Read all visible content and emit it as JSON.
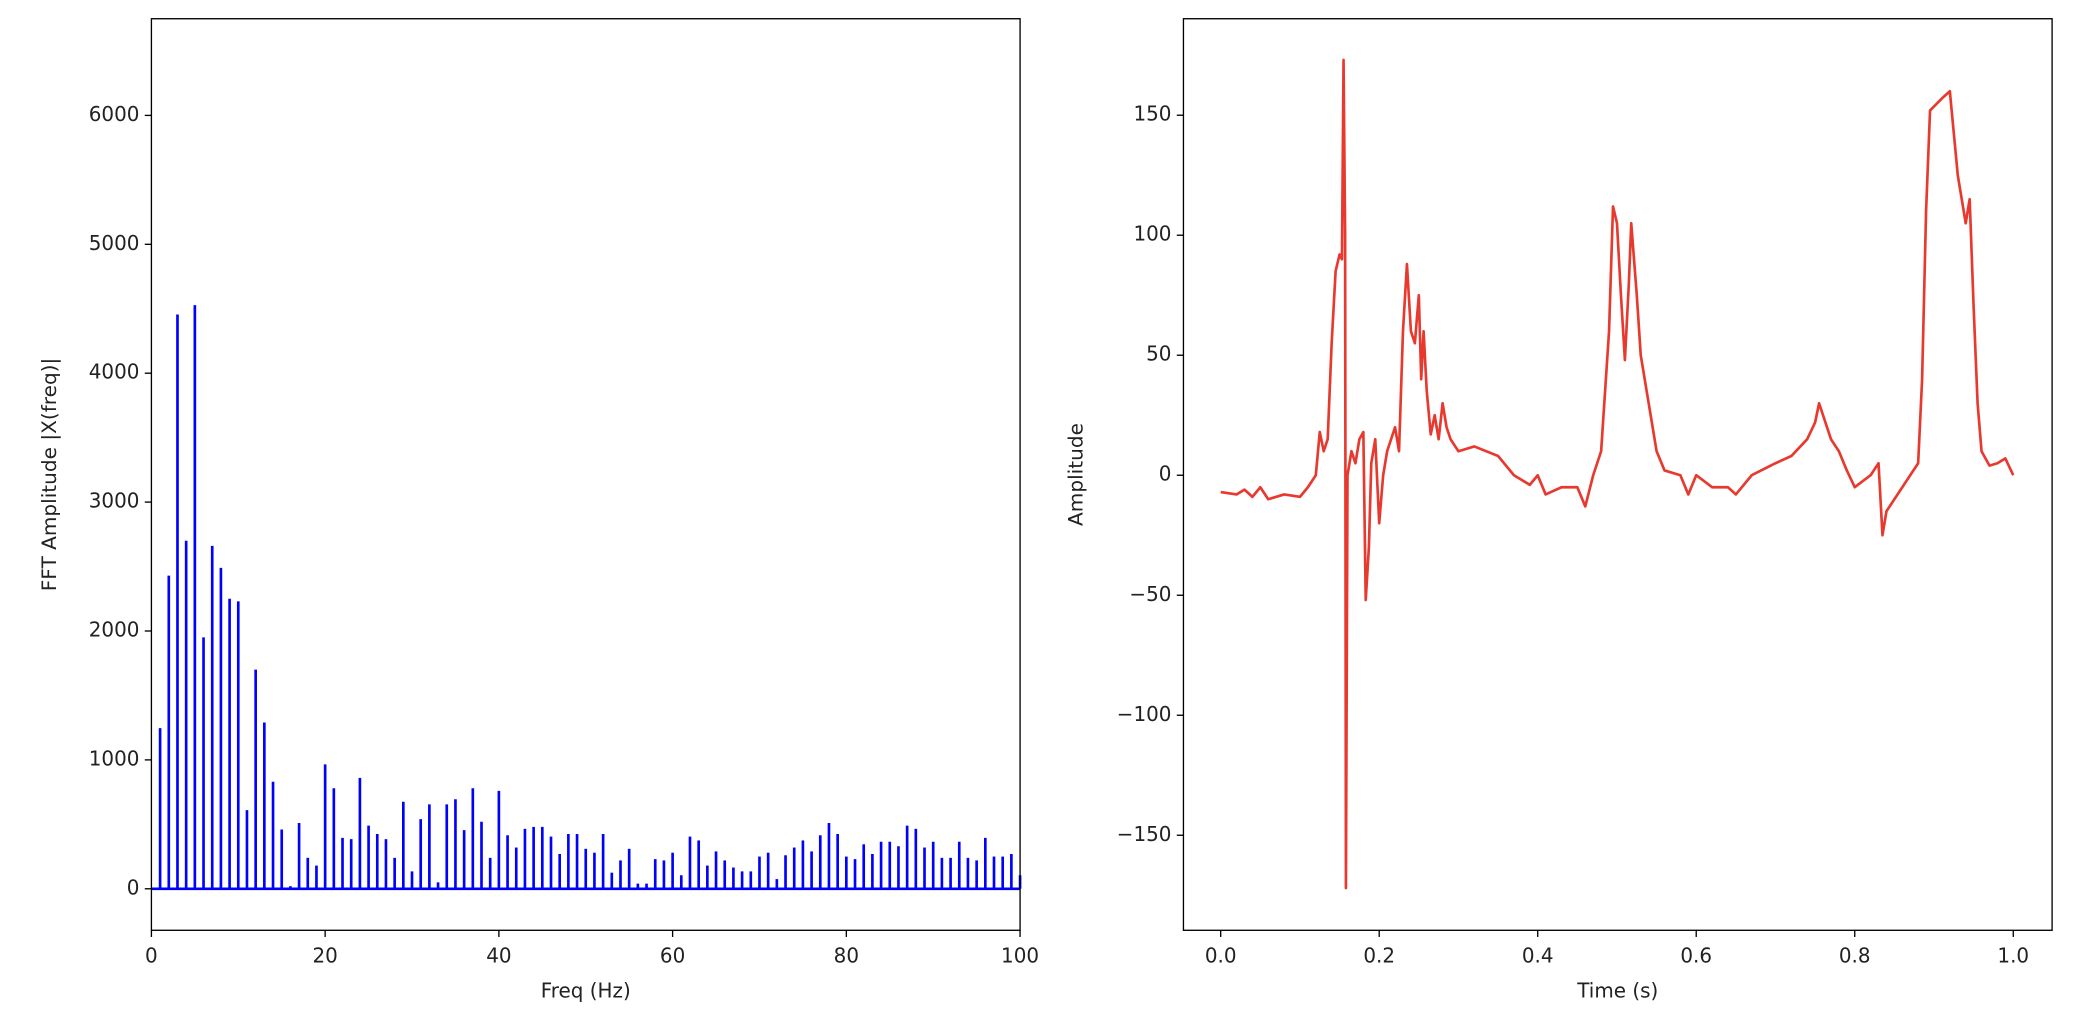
{
  "chart_data": [
    {
      "type": "stem",
      "xlabel": "Freq (Hz)",
      "ylabel": "FFT Amplitude |X(freq)|",
      "color": "#0000ff",
      "x": [
        1,
        2,
        3,
        4,
        5,
        6,
        7,
        8,
        9,
        10,
        11,
        12,
        13,
        14,
        15,
        16,
        17,
        18,
        19,
        20,
        21,
        22,
        23,
        24,
        25,
        26,
        27,
        28,
        29,
        30,
        31,
        32,
        33,
        34,
        35,
        36,
        37,
        38,
        39,
        40,
        41,
        42,
        43,
        44,
        45,
        46,
        47,
        48,
        49,
        50,
        51,
        52,
        53,
        54,
        55,
        56,
        57,
        58,
        59,
        60,
        61,
        62,
        63,
        64,
        65,
        66,
        67,
        68,
        69,
        70,
        71,
        72,
        73,
        74,
        75,
        76,
        77,
        78,
        79,
        80,
        81,
        82,
        83,
        84,
        85,
        86,
        87,
        88,
        89,
        90,
        91,
        92,
        93,
        94,
        95,
        96,
        97,
        98,
        99,
        100
      ],
      "values": [
        1246,
        2430,
        4455,
        2700,
        4528,
        1950,
        2660,
        2490,
        2250,
        2230,
        610,
        1700,
        1290,
        830,
        460,
        20,
        510,
        240,
        180,
        965,
        780,
        395,
        385,
        860,
        490,
        425,
        385,
        240,
        675,
        135,
        540,
        655,
        50,
        655,
        695,
        455,
        780,
        520,
        240,
        760,
        415,
        320,
        465,
        480,
        480,
        405,
        270,
        425,
        425,
        310,
        280,
        425,
        125,
        220,
        310,
        40,
        40,
        230,
        220,
        280,
        105,
        405,
        375,
        180,
        290,
        220,
        165,
        135,
        135,
        250,
        280,
        75,
        260,
        320,
        375,
        290,
        415,
        510,
        425,
        250,
        230,
        345,
        270,
        365,
        365,
        330,
        490,
        465,
        320,
        365,
        240,
        240,
        365,
        240,
        220,
        395,
        250,
        250,
        270,
        105
      ],
      "xlim": [
        0,
        100
      ],
      "xticks": [
        0,
        20,
        40,
        60,
        80,
        100
      ],
      "ylim": [
        -322,
        6750
      ],
      "yticks": [
        0,
        1000,
        2000,
        3000,
        4000,
        5000,
        6000
      ]
    },
    {
      "type": "line",
      "xlabel": "Time (s)",
      "ylabel": "Amplitude",
      "color": "#e8392f",
      "x": [
        0,
        0.02,
        0.03,
        0.04,
        0.05,
        0.06,
        0.08,
        0.1,
        0.11,
        0.12,
        0.125,
        0.13,
        0.135,
        0.14,
        0.145,
        0.15,
        0.153,
        0.155,
        0.157,
        0.158,
        0.16,
        0.165,
        0.17,
        0.175,
        0.18,
        0.183,
        0.187,
        0.19,
        0.195,
        0.2,
        0.205,
        0.21,
        0.22,
        0.225,
        0.23,
        0.235,
        0.24,
        0.245,
        0.25,
        0.253,
        0.256,
        0.26,
        0.265,
        0.27,
        0.275,
        0.28,
        0.285,
        0.29,
        0.3,
        0.32,
        0.35,
        0.37,
        0.39,
        0.4,
        0.41,
        0.43,
        0.45,
        0.46,
        0.47,
        0.48,
        0.49,
        0.495,
        0.5,
        0.505,
        0.51,
        0.515,
        0.518,
        0.525,
        0.53,
        0.54,
        0.55,
        0.56,
        0.58,
        0.59,
        0.6,
        0.62,
        0.64,
        0.65,
        0.67,
        0.7,
        0.72,
        0.74,
        0.75,
        0.755,
        0.77,
        0.78,
        0.79,
        0.8,
        0.82,
        0.83,
        0.835,
        0.84,
        0.86,
        0.87,
        0.88,
        0.885,
        0.89,
        0.895,
        0.91,
        0.92,
        0.93,
        0.94,
        0.945,
        0.95,
        0.955,
        0.96,
        0.97,
        0.98,
        0.99,
        1.0
      ],
      "values": [
        -7,
        -8,
        -6,
        -9,
        -5,
        -10,
        -8,
        -9,
        -5,
        0,
        18,
        10,
        15,
        55,
        85,
        92,
        90,
        173,
        100,
        -172,
        0,
        10,
        5,
        15,
        18,
        -52,
        -30,
        5,
        15,
        -20,
        0,
        10,
        20,
        10,
        60,
        88,
        60,
        55,
        75,
        40,
        60,
        35,
        17,
        25,
        15,
        30,
        20,
        15,
        10,
        12,
        8,
        0,
        -4,
        0,
        -8,
        -5,
        -5,
        -13,
        0,
        10,
        60,
        112,
        105,
        75,
        48,
        80,
        105,
        75,
        50,
        30,
        10,
        2,
        0,
        -8,
        0,
        -5,
        -5,
        -8,
        0,
        5,
        8,
        15,
        22,
        30,
        15,
        10,
        2,
        -5,
        0,
        5,
        -25,
        -15,
        -5,
        0,
        5,
        40,
        110,
        152,
        157,
        160,
        125,
        105,
        115,
        70,
        30,
        10,
        4,
        5,
        7,
        0
      ],
      "xlim": [
        -0.047,
        1.049
      ],
      "xticks": [
        {
          "value": 0,
          "label": "0.0"
        },
        {
          "value": 0.2,
          "label": "0.2"
        },
        {
          "value": 0.4,
          "label": "0.4"
        },
        {
          "value": 0.6,
          "label": "0.6"
        },
        {
          "value": 0.8,
          "label": "0.8"
        },
        {
          "value": 1,
          "label": "1.0"
        }
      ],
      "ylim": [
        -189.6,
        190.2
      ],
      "yticks": [
        {
          "value": -150,
          "label": "−150"
        },
        {
          "value": -100,
          "label": "−100"
        },
        {
          "value": -50,
          "label": "−50"
        },
        0,
        50,
        100,
        150
      ]
    }
  ]
}
